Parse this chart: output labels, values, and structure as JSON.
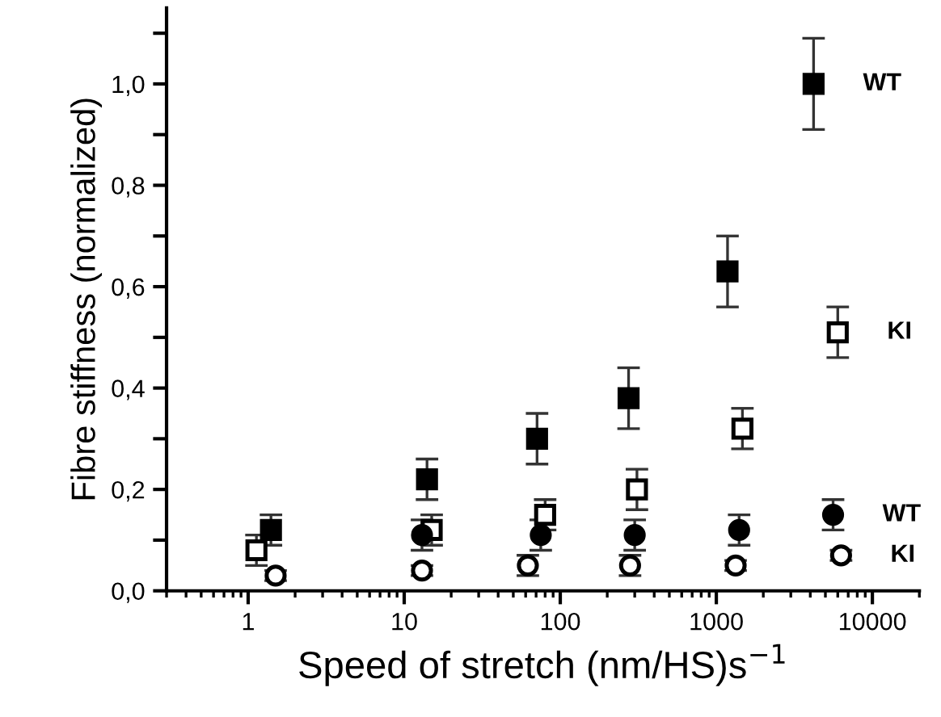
{
  "chart_data": {
    "type": "scatter",
    "xlabel": "Speed of stretch (nm/HS)s$^{−1}$",
    "ylabel": "Fibre stiffness (normalized)",
    "log": "x",
    "xlim": [
      0.3,
      20000
    ],
    "xticks": [
      1,
      10,
      100,
      1000,
      10000
    ],
    "ylim": [
      0,
      1.15
    ],
    "yticks": [
      {
        "value": 0,
        "label": "0,0"
      },
      {
        "value": 0.1,
        "label": null
      },
      {
        "value": 0.2,
        "label": "0,2"
      },
      {
        "value": 0.3,
        "label": null
      },
      {
        "value": 0.4,
        "label": "0,4"
      },
      {
        "value": 0.5,
        "label": null
      },
      {
        "value": 0.6,
        "label": "0,6"
      },
      {
        "value": 0.7,
        "label": null
      },
      {
        "value": 0.8,
        "label": "0,8"
      },
      {
        "value": 0.9,
        "label": null
      },
      {
        "value": 1.0,
        "label": "1,0"
      },
      {
        "value": 1.1,
        "label": null
      }
    ],
    "grid": false,
    "legend": false,
    "series": [
      {
        "name": "WT",
        "color": "#000000",
        "marker": "square",
        "x": [
          1.4,
          14,
          71,
          274,
          1180,
          4200
        ],
        "values": [
          0.12,
          0.22,
          0.3,
          0.38,
          0.63,
          1.0
        ],
        "errors": [
          0.03,
          0.04,
          0.05,
          0.06,
          0.07,
          0.09
        ]
      },
      {
        "name": "KI",
        "color": "#ffffff",
        "marker": "square",
        "x": [
          1.13,
          15,
          80,
          310,
          1470,
          6000
        ],
        "values": [
          0.08,
          0.12,
          0.15,
          0.2,
          0.32,
          0.51
        ],
        "errors": [
          0.03,
          0.03,
          0.03,
          0.04,
          0.04,
          0.05
        ]
      },
      {
        "name": "WT",
        "color": "#000000",
        "marker": "circle",
        "x": [
          13,
          75,
          300,
          1400,
          5600
        ],
        "values": [
          0.11,
          0.11,
          0.11,
          0.12,
          0.15
        ],
        "errors": [
          0.03,
          0.03,
          0.03,
          0.03,
          0.03
        ]
      },
      {
        "name": "KI",
        "color": "#ffffff",
        "marker": "circle",
        "x": [
          1.5,
          13,
          62,
          280,
          1330,
          6300
        ],
        "values": [
          0.03,
          0.04,
          0.05,
          0.05,
          0.05,
          0.07
        ],
        "errors": [
          0.01,
          0.01,
          0.02,
          0.02,
          0.01,
          0.01
        ]
      }
    ]
  }
}
